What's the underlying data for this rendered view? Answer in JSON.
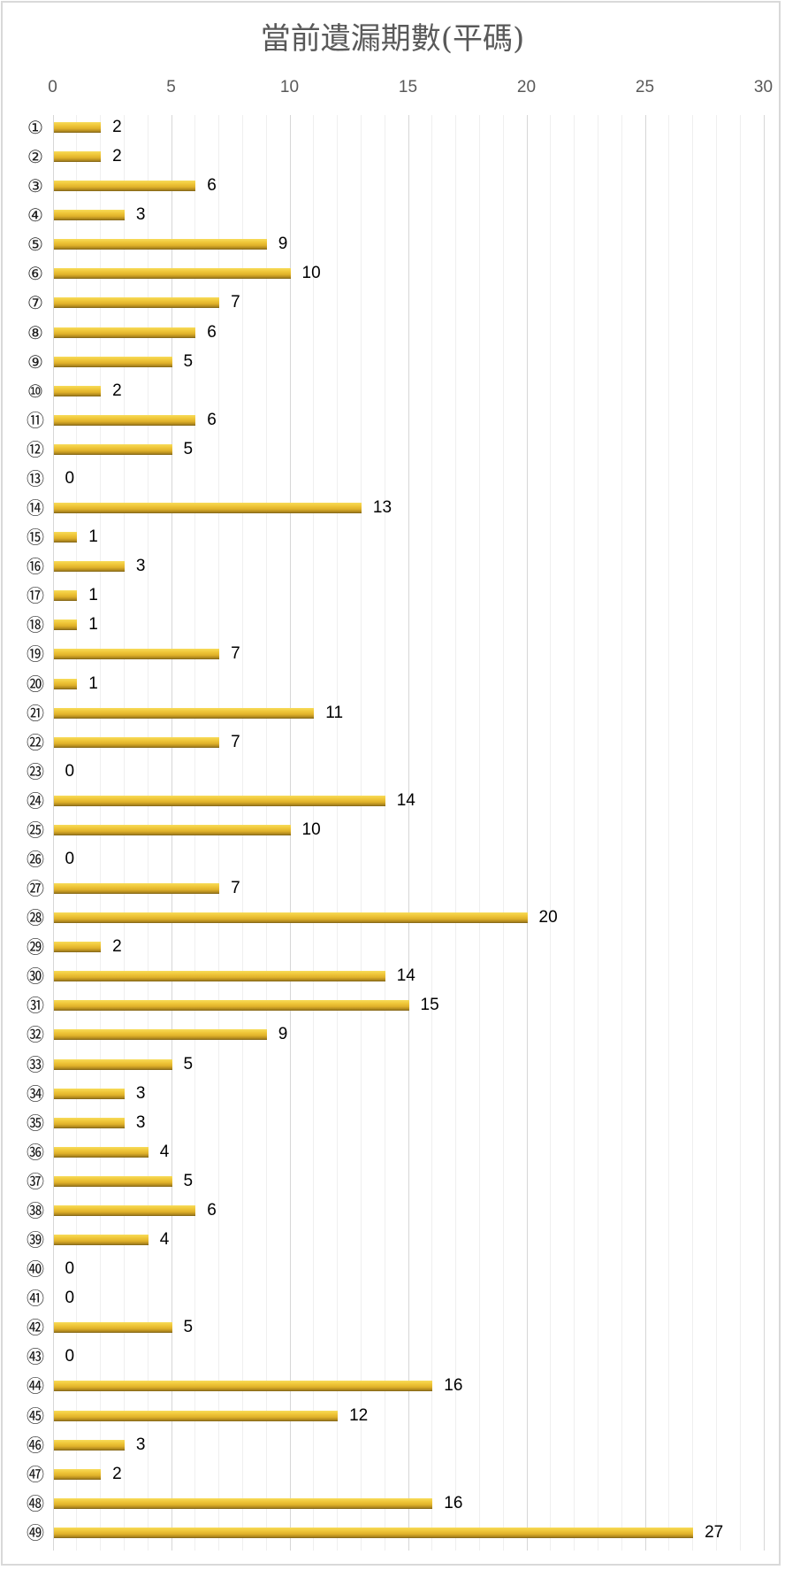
{
  "chart_data": {
    "type": "bar",
    "orientation": "horizontal",
    "title": "當前遺漏期數(平碼)",
    "xlabel": "",
    "ylabel": "",
    "xlim": [
      0,
      30
    ],
    "x_ticks": [
      0,
      5,
      10,
      15,
      20,
      25,
      30
    ],
    "minor_gridlines_step": 1,
    "grid": true,
    "legend": "none",
    "data_labels": true,
    "bar_color": "#e0b22a",
    "categories": [
      "①",
      "②",
      "③",
      "④",
      "⑤",
      "⑥",
      "⑦",
      "⑧",
      "⑨",
      "⑩",
      "⑪",
      "⑫",
      "⑬",
      "⑭",
      "⑮",
      "⑯",
      "⑰",
      "⑱",
      "⑲",
      "⑳",
      "㉑",
      "㉒",
      "㉓",
      "㉔",
      "㉕",
      "㉖",
      "㉗",
      "㉘",
      "㉙",
      "㉚",
      "㉛",
      "㉜",
      "㉝",
      "㉞",
      "㉟",
      "㊱",
      "㊲",
      "㊳",
      "㊴",
      "㊵",
      "㊶",
      "㊷",
      "㊸",
      "㊹",
      "㊺",
      "㊻",
      "㊼",
      "㊽",
      "㊾"
    ],
    "values": [
      2,
      2,
      6,
      3,
      9,
      10,
      7,
      6,
      5,
      2,
      6,
      5,
      0,
      13,
      1,
      3,
      1,
      1,
      7,
      1,
      11,
      7,
      0,
      14,
      10,
      0,
      7,
      20,
      2,
      14,
      15,
      9,
      5,
      3,
      3,
      4,
      5,
      6,
      4,
      0,
      0,
      5,
      0,
      16,
      12,
      3,
      2,
      16,
      27
    ]
  }
}
